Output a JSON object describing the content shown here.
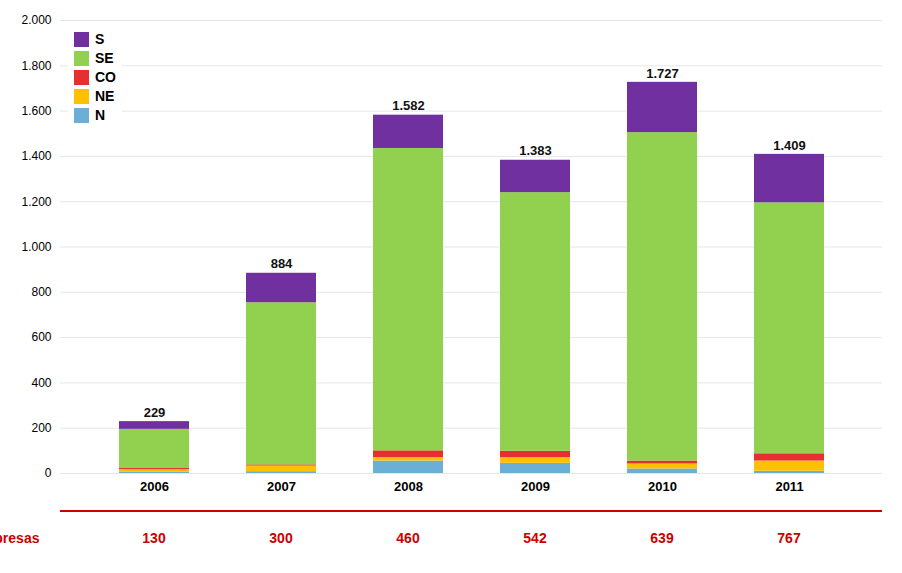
{
  "chart_data": {
    "type": "bar",
    "stacked": true,
    "categories": [
      "2006",
      "2007",
      "2008",
      "2009",
      "2010",
      "2011"
    ],
    "series": [
      {
        "name": "N",
        "color": "#6baed6",
        "values": [
          5,
          8,
          55,
          45,
          20,
          10
        ]
      },
      {
        "name": "NE",
        "color": "#ffc000",
        "values": [
          12,
          25,
          15,
          25,
          22,
          45
        ]
      },
      {
        "name": "CO",
        "color": "#e63030",
        "values": [
          5,
          5,
          30,
          28,
          13,
          32
        ]
      },
      {
        "name": "SE",
        "color": "#92d050",
        "values": [
          173,
          716,
          1335,
          1142,
          1450,
          1108
        ]
      },
      {
        "name": "S",
        "color": "#7030a0",
        "values": [
          34,
          130,
          147,
          143,
          222,
          214
        ]
      }
    ],
    "totals": [
      229,
      884,
      1582,
      1383,
      1727,
      1409
    ],
    "total_labels": [
      "229",
      "884",
      "1.582",
      "1.383",
      "1.727",
      "1.409"
    ],
    "empresas": {
      "label": "Empresas",
      "color": "#cc0000",
      "values": [
        130,
        300,
        460,
        542,
        639,
        767
      ]
    },
    "ylim": [
      0,
      2000
    ],
    "yticks": [
      0,
      200,
      400,
      600,
      800,
      {
        "value": 1000,
        "label": "1.000"
      },
      {
        "value": 1200,
        "label": "1.200"
      },
      {
        "value": 1400,
        "label": "1.400"
      },
      {
        "value": 1600,
        "label": "1.600"
      },
      {
        "value": 1800,
        "label": "1.800"
      },
      {
        "value": 2000,
        "label": "2.000"
      }
    ],
    "grid": true,
    "legend": "upper left"
  }
}
